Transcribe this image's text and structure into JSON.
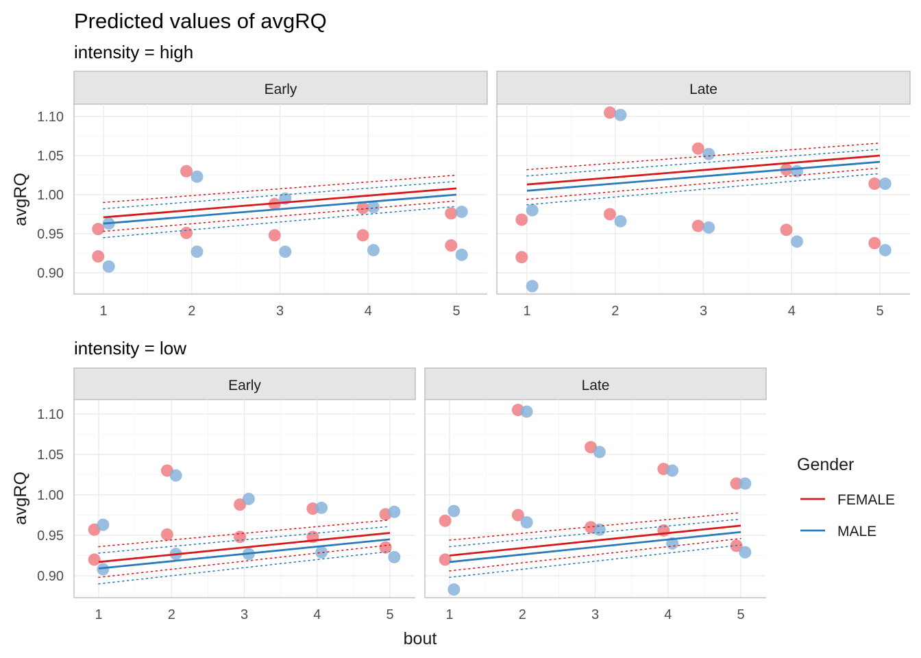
{
  "title": "Predicted values of avgRQ",
  "colors": {
    "FEMALE": "#d7191c",
    "MALE": "#2b7bba",
    "FEMALE_point": "#ee7d82",
    "MALE_point": "#87b3da"
  },
  "legend": {
    "title": "Gender",
    "items": [
      "FEMALE",
      "MALE"
    ],
    "position": "right"
  },
  "axes": {
    "xlabel": "bout",
    "ylabel": "avgRQ"
  },
  "chart_data": [
    {
      "type": "line",
      "subtitle": "intensity = high",
      "x_ticks": [
        1,
        2,
        3,
        4,
        5
      ],
      "y_ticks": [
        "0.90",
        "0.95",
        "1.00",
        "1.05",
        "1.10"
      ],
      "ylim": [
        0.875,
        1.115
      ],
      "facets": [
        {
          "name": "Early",
          "lines": {
            "FEMALE": {
              "x": [
                1,
                5
              ],
              "y": [
                0.971,
                1.008
              ],
              "ci_low": [
                0.953,
                0.992
              ],
              "ci_high": [
                0.99,
                1.025
              ]
            },
            "MALE": {
              "x": [
                1,
                5
              ],
              "y": [
                0.963,
                1.0
              ],
              "ci_low": [
                0.945,
                0.985
              ],
              "ci_high": [
                0.982,
                1.017
              ]
            }
          },
          "points": {
            "FEMALE": {
              "x": [
                1,
                1,
                2,
                2,
                3,
                3,
                4,
                4,
                5,
                5
              ],
              "y": [
                0.956,
                0.921,
                1.03,
                0.951,
                0.988,
                0.948,
                0.983,
                0.948,
                0.976,
                0.935
              ]
            },
            "MALE": {
              "x": [
                1,
                1,
                2,
                2,
                3,
                3,
                4,
                4,
                5,
                5
              ],
              "y": [
                0.963,
                0.908,
                1.023,
                0.927,
                0.995,
                0.927,
                0.984,
                0.929,
                0.978,
                0.923
              ]
            }
          }
        },
        {
          "name": "Late",
          "lines": {
            "FEMALE": {
              "x": [
                1,
                5
              ],
              "y": [
                1.013,
                1.05
              ],
              "ci_low": [
                0.994,
                1.034
              ],
              "ci_high": [
                1.032,
                1.066
              ]
            },
            "MALE": {
              "x": [
                1,
                5
              ],
              "y": [
                1.005,
                1.042
              ],
              "ci_low": [
                0.987,
                1.027
              ],
              "ci_high": [
                1.024,
                1.058
              ]
            }
          },
          "points": {
            "FEMALE": {
              "x": [
                1,
                1,
                2,
                2,
                3,
                3,
                4,
                4,
                5,
                5
              ],
              "y": [
                0.968,
                0.92,
                1.105,
                0.975,
                1.059,
                0.96,
                1.032,
                0.955,
                1.014,
                0.938
              ]
            },
            "MALE": {
              "x": [
                1,
                1,
                2,
                2,
                3,
                3,
                4,
                4,
                5,
                5
              ],
              "y": [
                0.98,
                0.883,
                1.102,
                0.966,
                1.052,
                0.958,
                1.03,
                0.94,
                1.014,
                0.929
              ]
            }
          }
        }
      ]
    },
    {
      "type": "line",
      "subtitle": "intensity = low",
      "x_ticks": [
        1,
        2,
        3,
        4,
        5
      ],
      "y_ticks": [
        "0.90",
        "0.95",
        "1.00",
        "1.05",
        "1.10"
      ],
      "ylim": [
        0.875,
        1.115
      ],
      "facets": [
        {
          "name": "Early",
          "lines": {
            "FEMALE": {
              "x": [
                1,
                5
              ],
              "y": [
                0.917,
                0.953
              ],
              "ci_low": [
                0.898,
                0.938
              ],
              "ci_high": [
                0.936,
                0.969
              ]
            },
            "MALE": {
              "x": [
                1,
                5
              ],
              "y": [
                0.909,
                0.945
              ],
              "ci_low": [
                0.89,
                0.93
              ],
              "ci_high": [
                0.928,
                0.961
              ]
            }
          },
          "points": {
            "FEMALE": {
              "x": [
                1,
                1,
                2,
                2,
                3,
                3,
                4,
                4,
                5,
                5
              ],
              "y": [
                0.957,
                0.92,
                1.03,
                0.951,
                0.988,
                0.948,
                0.983,
                0.948,
                0.976,
                0.935
              ]
            },
            "MALE": {
              "x": [
                1,
                1,
                2,
                2,
                3,
                3,
                4,
                4,
                5,
                5
              ],
              "y": [
                0.963,
                0.908,
                1.024,
                0.927,
                0.995,
                0.927,
                0.984,
                0.929,
                0.979,
                0.923
              ]
            }
          }
        },
        {
          "name": "Late",
          "lines": {
            "FEMALE": {
              "x": [
                1,
                5
              ],
              "y": [
                0.925,
                0.962
              ],
              "ci_low": [
                0.906,
                0.946
              ],
              "ci_high": [
                0.944,
                0.978
              ]
            },
            "MALE": {
              "x": [
                1,
                5
              ],
              "y": [
                0.917,
                0.954
              ],
              "ci_low": [
                0.898,
                0.938
              ],
              "ci_high": [
                0.936,
                0.97
              ]
            }
          },
          "points": {
            "FEMALE": {
              "x": [
                1,
                1,
                2,
                2,
                3,
                3,
                4,
                4,
                5,
                5
              ],
              "y": [
                0.968,
                0.92,
                1.105,
                0.975,
                1.059,
                0.96,
                1.032,
                0.956,
                1.014,
                0.937
              ]
            },
            "MALE": {
              "x": [
                1,
                1,
                2,
                2,
                3,
                3,
                4,
                4,
                5,
                5
              ],
              "y": [
                0.98,
                0.883,
                1.103,
                0.966,
                1.053,
                0.957,
                1.03,
                0.94,
                1.014,
                0.929
              ]
            }
          }
        }
      ]
    }
  ]
}
